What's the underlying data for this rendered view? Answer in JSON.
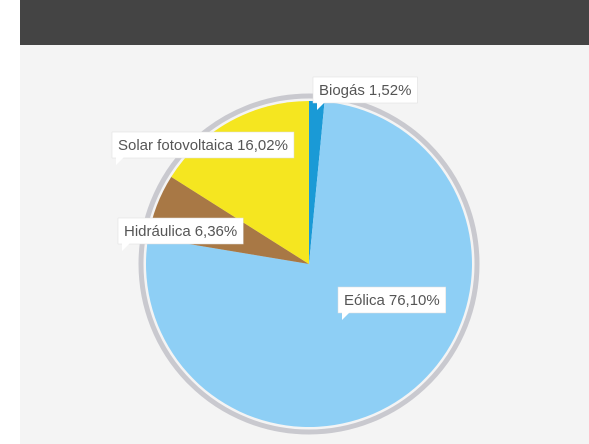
{
  "chart_data": {
    "type": "pie",
    "categories": [
      "Biogás",
      "Eólica",
      "Hidráulica",
      "Solar fotovoltaica"
    ],
    "values": [
      1.52,
      76.1,
      6.36,
      16.02
    ],
    "value_labels": [
      "1,52%",
      "76,10%",
      "6,36%",
      "16,02%"
    ],
    "colors": [
      "#1a9ad6",
      "#8ecff5",
      "#a87845",
      "#f5e620"
    ]
  }
}
